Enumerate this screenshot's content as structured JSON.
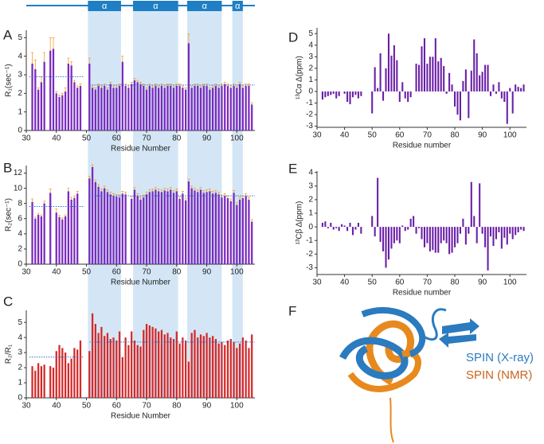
{
  "chart_data": [
    {
      "type": "bar",
      "panel": "A",
      "ylabel": "R₁(sec⁻¹)",
      "xlabel": "Residue Number",
      "color": "#7a2bbd",
      "error_color": "#f0a030",
      "mean_color": "#2a6fd6",
      "x": [
        32,
        33,
        34,
        35,
        36,
        37,
        38,
        39,
        40,
        41,
        42,
        43,
        44,
        45,
        46,
        47,
        48,
        49,
        50,
        51,
        52,
        53,
        54,
        55,
        56,
        57,
        58,
        59,
        60,
        61,
        62,
        63,
        64,
        65,
        66,
        67,
        68,
        69,
        70,
        71,
        72,
        73,
        74,
        75,
        76,
        77,
        78,
        79,
        80,
        81,
        82,
        83,
        84,
        85,
        86,
        87,
        88,
        89,
        90,
        91,
        92,
        93,
        94,
        95,
        96,
        97,
        98,
        99,
        100,
        101,
        102,
        103,
        104,
        105
      ],
      "values": [
        3.6,
        3.3,
        2.2,
        2.6,
        3.7,
        null,
        4.3,
        4.4,
        2.0,
        1.8,
        1.9,
        2.1,
        3.6,
        3.5,
        2.6,
        2.3,
        2.4,
        null,
        null,
        3.6,
        2.3,
        2.2,
        2.4,
        2.3,
        2.4,
        2.2,
        2.5,
        2.3,
        2.3,
        2.4,
        3.7,
        2.4,
        2.3,
        2.5,
        2.7,
        2.6,
        2.5,
        2.4,
        2.2,
        2.4,
        2.3,
        2.4,
        2.3,
        2.4,
        2.3,
        2.4,
        2.4,
        2.3,
        2.4,
        2.4,
        2.3,
        2.2,
        4.7,
        2.3,
        2.4,
        2.4,
        2.3,
        2.4,
        2.4,
        2.2,
        2.3,
        2.4,
        2.3,
        2.4,
        2.5,
        2.4,
        2.3,
        2.4,
        2.3,
        2.5,
        2.3,
        2.4,
        2.4,
        1.4
      ],
      "errors": [
        0.6,
        0.5,
        0.1,
        0.3,
        0.5,
        null,
        0.7,
        0.6,
        0.1,
        0.1,
        0.1,
        0.2,
        0.3,
        0.2,
        0.1,
        0.1,
        0.1,
        null,
        null,
        0.3,
        0.1,
        0.1,
        0.1,
        0.1,
        0.1,
        0.1,
        0.1,
        0.1,
        0.1,
        0.1,
        0.3,
        0.1,
        0.1,
        0.1,
        0.1,
        0.1,
        0.1,
        0.1,
        0.1,
        0.1,
        0.1,
        0.1,
        0.1,
        0.1,
        0.1,
        0.1,
        0.1,
        0.1,
        0.1,
        0.1,
        0.1,
        0.1,
        0.5,
        0.1,
        0.1,
        0.1,
        0.1,
        0.1,
        0.1,
        0.1,
        0.1,
        0.1,
        0.1,
        0.1,
        0.1,
        0.1,
        0.1,
        0.1,
        0.1,
        0.1,
        0.1,
        0.1,
        0.1,
        0.1
      ],
      "mean_lines": [
        {
          "x": [
            31,
            49
          ],
          "value": 2.9
        },
        {
          "x": [
            51,
            106
          ],
          "value": 2.45
        }
      ],
      "xlim": [
        30,
        106
      ],
      "xticks": [
        30,
        40,
        50,
        60,
        70,
        80,
        90,
        100
      ],
      "ylim": [
        0,
        5.4
      ],
      "yticks": [
        0,
        1,
        2,
        3,
        4,
        5
      ]
    },
    {
      "type": "bar",
      "panel": "B",
      "ylabel": "R₂(sec⁻¹)",
      "xlabel": "Residue Number",
      "color": "#7a2bbd",
      "error_color": "#f0a030",
      "mean_color": "#2a6fd6",
      "x": [
        32,
        33,
        34,
        35,
        36,
        37,
        38,
        39,
        40,
        41,
        42,
        43,
        44,
        45,
        46,
        47,
        48,
        49,
        50,
        51,
        52,
        53,
        54,
        55,
        56,
        57,
        58,
        59,
        60,
        61,
        62,
        63,
        64,
        65,
        66,
        67,
        68,
        69,
        70,
        71,
        72,
        73,
        74,
        75,
        76,
        77,
        78,
        79,
        80,
        81,
        82,
        83,
        84,
        85,
        86,
        87,
        88,
        89,
        90,
        91,
        92,
        93,
        94,
        95,
        96,
        97,
        98,
        99,
        100,
        101,
        102,
        103,
        104,
        105
      ],
      "values": [
        8.2,
        6.0,
        6.5,
        6.3,
        8.0,
        null,
        9.4,
        null,
        6.8,
        6.2,
        5.9,
        6.3,
        9.6,
        8.5,
        8.7,
        9.3,
        null,
        null,
        null,
        11.3,
        12.8,
        10.8,
        10.2,
        9.6,
        10.0,
        9.5,
        9.2,
        9.0,
        8.9,
        8.8,
        9.3,
        9.2,
        null,
        8.6,
        9.8,
        9.0,
        8.5,
        8.8,
        9.2,
        9.5,
        9.6,
        9.8,
        9.6,
        9.5,
        9.7,
        9.6,
        9.8,
        9.4,
        9.6,
        8.6,
        9.3,
        8.4,
        10.9,
        10.0,
        9.7,
        9.5,
        9.8,
        9.4,
        9.5,
        9.6,
        9.3,
        9.4,
        9.2,
        8.8,
        9.0,
        8.7,
        8.3,
        9.4,
        7.8,
        8.5,
        8.7,
        9.0,
        8.5,
        5.6
      ],
      "errors": [
        0.4,
        0.2,
        0.2,
        0.2,
        0.3,
        null,
        0.5,
        null,
        0.5,
        0.2,
        0.2,
        0.2,
        0.4,
        0.3,
        0.3,
        0.3,
        null,
        null,
        null,
        0.3,
        0.3,
        0.3,
        0.3,
        0.3,
        0.3,
        0.3,
        0.3,
        0.3,
        0.3,
        0.3,
        0.3,
        0.3,
        null,
        0.3,
        0.3,
        0.3,
        0.3,
        0.3,
        0.3,
        0.3,
        0.3,
        0.3,
        0.3,
        0.3,
        0.3,
        0.3,
        0.3,
        0.3,
        0.3,
        0.3,
        0.3,
        0.3,
        0.3,
        0.3,
        0.3,
        0.3,
        0.3,
        0.3,
        0.3,
        0.3,
        0.3,
        0.3,
        0.3,
        0.3,
        0.3,
        0.3,
        0.3,
        0.3,
        0.3,
        0.3,
        0.3,
        0.3,
        0.3,
        0.3
      ],
      "mean_lines": [
        {
          "x": [
            31,
            49
          ],
          "value": 7.6
        },
        {
          "x": [
            51,
            106
          ],
          "value": 9.0
        }
      ],
      "xlim": [
        30,
        106
      ],
      "xticks": [
        30,
        40,
        50,
        60,
        70,
        80,
        90,
        100
      ],
      "ylim": [
        0,
        13
      ],
      "yticks": [
        0,
        2,
        4,
        6,
        8,
        10,
        12
      ]
    },
    {
      "type": "bar",
      "panel": "C",
      "ylabel": "R₂/R₁",
      "xlabel": "Residue Number",
      "color": "#d42a2a",
      "mean_color": "#2a6fd6",
      "x": [
        32,
        33,
        34,
        35,
        36,
        37,
        38,
        39,
        40,
        41,
        42,
        43,
        44,
        45,
        46,
        47,
        48,
        49,
        50,
        51,
        52,
        53,
        54,
        55,
        56,
        57,
        58,
        59,
        60,
        61,
        62,
        63,
        64,
        65,
        66,
        67,
        68,
        69,
        70,
        71,
        72,
        73,
        74,
        75,
        76,
        77,
        78,
        79,
        80,
        81,
        82,
        83,
        84,
        85,
        86,
        87,
        88,
        89,
        90,
        91,
        92,
        93,
        94,
        95,
        96,
        97,
        98,
        99,
        100,
        101,
        102,
        103,
        104,
        105
      ],
      "values": [
        2.1,
        1.8,
        2.3,
        2.1,
        2.2,
        null,
        2.1,
        2.0,
        3.1,
        3.5,
        3.3,
        3.0,
        2.3,
        2.6,
        3.3,
        3.2,
        3.8,
        null,
        null,
        3.1,
        5.6,
        4.9,
        4.3,
        4.7,
        4.1,
        4.3,
        3.9,
        4.0,
        3.8,
        4.4,
        2.7,
        4.0,
        3.5,
        4.4,
        3.8,
        3.5,
        3.4,
        4.5,
        4.9,
        4.8,
        4.7,
        4.6,
        4.4,
        4.5,
        4.2,
        4.3,
        4.0,
        3.9,
        4.4,
        3.6,
        4.0,
        3.8,
        2.4,
        4.3,
        4.5,
        4.0,
        4.2,
        4.1,
        4.3,
        4.0,
        4.1,
        3.9,
        3.6,
        3.7,
        3.5,
        3.8,
        3.9,
        3.7,
        3.3,
        3.6,
        4.0,
        3.8,
        3.3,
        4.2
      ],
      "mean_lines": [
        {
          "x": [
            31,
            49
          ],
          "value": 2.7
        },
        {
          "x": [
            51,
            106
          ],
          "value": 3.7
        }
      ],
      "xlim": [
        30,
        106
      ],
      "xticks": [
        30,
        40,
        50,
        60,
        70,
        80,
        90,
        100
      ],
      "ylim": [
        0,
        5.8
      ],
      "yticks": [
        0,
        1,
        2,
        3,
        4,
        5
      ]
    },
    {
      "type": "bar",
      "panel": "D",
      "ylabel": "¹³Cα Δ(ppm)",
      "xlabel": "Residue number",
      "color": "#6a1fa6",
      "x": [
        32,
        33,
        34,
        35,
        36,
        37,
        38,
        39,
        40,
        41,
        42,
        43,
        44,
        45,
        46,
        47,
        48,
        49,
        50,
        51,
        52,
        53,
        54,
        55,
        56,
        57,
        58,
        59,
        60,
        61,
        62,
        63,
        64,
        65,
        66,
        67,
        68,
        69,
        70,
        71,
        72,
        73,
        74,
        75,
        76,
        77,
        78,
        79,
        80,
        81,
        82,
        83,
        84,
        85,
        86,
        87,
        88,
        89,
        90,
        91,
        92,
        93,
        94,
        95,
        96,
        97,
        98,
        99,
        100,
        101,
        102,
        103,
        104,
        105
      ],
      "values": [
        -0.7,
        -0.5,
        -0.4,
        -0.3,
        -0.2,
        -0.6,
        -0.4,
        null,
        -0.2,
        -0.9,
        -1.1,
        -0.5,
        -0.3,
        -0.6,
        -0.4,
        null,
        null,
        null,
        -1.9,
        2.1,
        0.3,
        3.3,
        -0.8,
        2.0,
        5.0,
        3.1,
        4.0,
        2.7,
        -0.9,
        0.8,
        -0.6,
        -0.9,
        -0.5,
        null,
        2.4,
        2.3,
        3.9,
        4.6,
        2.4,
        3.0,
        3.0,
        4.6,
        2.6,
        2.9,
        2.2,
        -0.2,
        1.6,
        0.6,
        -1.3,
        -2.0,
        -2.5,
        0.9,
        1.9,
        -2.3,
        1.8,
        4.5,
        3.3,
        1.4,
        1.7,
        2.3,
        2.3,
        -0.4,
        0.6,
        -0.2,
        0.8,
        -0.6,
        -0.9,
        -2.8,
        0.3,
        -1.9,
        0.6,
        0.4,
        0.3,
        0.6
      ],
      "xlim": [
        30,
        106
      ],
      "xticks": [
        30,
        40,
        50,
        60,
        70,
        80,
        90,
        100
      ],
      "ylim": [
        -3.1,
        5.5
      ],
      "yticks": [
        -3,
        -2,
        -1,
        0,
        1,
        2,
        3,
        4,
        5
      ]
    },
    {
      "type": "bar",
      "panel": "E",
      "ylabel": "¹³Cβ Δ(ppm)",
      "xlabel": "Residue number",
      "color": "#6a1fa6",
      "x": [
        32,
        33,
        34,
        35,
        36,
        37,
        38,
        39,
        40,
        41,
        42,
        43,
        44,
        45,
        46,
        47,
        48,
        49,
        50,
        51,
        52,
        53,
        54,
        55,
        56,
        57,
        58,
        59,
        60,
        61,
        62,
        63,
        64,
        65,
        66,
        67,
        68,
        69,
        70,
        71,
        72,
        73,
        74,
        75,
        76,
        77,
        78,
        79,
        80,
        81,
        82,
        83,
        84,
        85,
        86,
        87,
        88,
        89,
        90,
        91,
        92,
        93,
        94,
        95,
        96,
        97,
        98,
        99,
        100,
        101,
        102,
        103,
        104,
        105
      ],
      "values": [
        0.3,
        0.4,
        -0.1,
        0.3,
        -0.2,
        -0.1,
        -0.3,
        0.2,
        0.1,
        -0.3,
        0.3,
        -0.6,
        -0.2,
        0.3,
        -0.5,
        null,
        null,
        null,
        0.8,
        -0.7,
        3.6,
        -1.1,
        -1.8,
        -3.0,
        -2.4,
        -1.6,
        -1.2,
        -1.0,
        -1.2,
        0.1,
        -0.3,
        -0.2,
        0.6,
        0.8,
        -0.5,
        -0.1,
        -0.9,
        -1.5,
        -1.2,
        -1.8,
        -1.7,
        -1.9,
        -1.9,
        -1.2,
        -1.0,
        -1.2,
        -2.0,
        -1.9,
        -1.5,
        -1.2,
        -0.5,
        0.6,
        -1.3,
        -0.5,
        3.3,
        0.8,
        -1.2,
        3.2,
        -0.5,
        -1.5,
        -3.2,
        -0.7,
        -1.4,
        -0.9,
        -0.4,
        -1.6,
        -0.8,
        -1.3,
        -0.5,
        -0.9,
        -0.6,
        -0.4,
        -0.2,
        -0.3
      ],
      "xlim": [
        30,
        106
      ],
      "xticks": [
        30,
        40,
        50,
        60,
        70,
        80,
        90,
        100
      ],
      "ylim": [
        -3.5,
        4.1
      ],
      "yticks": [
        -3,
        -2,
        -1,
        0,
        1,
        2,
        3,
        4
      ]
    }
  ],
  "helices": [
    {
      "label": "α",
      "range": [
        50.5,
        61.5
      ]
    },
    {
      "label": "α",
      "range": [
        65.5,
        80.5
      ]
    },
    {
      "label": "α",
      "range": [
        83.5,
        95
      ]
    },
    {
      "label": "α",
      "range": [
        98.5,
        102
      ]
    }
  ],
  "structure": {
    "panel": "F",
    "legend": [
      {
        "name": "SPIN (X-ray)",
        "color": "#2b7bbf"
      },
      {
        "name": "SPIN (NMR)",
        "color": "#c8641e"
      }
    ]
  }
}
